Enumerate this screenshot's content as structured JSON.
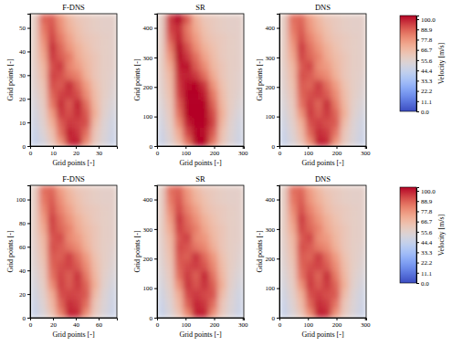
{
  "chart_data": [
    {
      "type": "heatmap",
      "title": "F-DNS",
      "x_label": "Grid points [-]",
      "y_label": "Grid points [-]",
      "xlim": [
        0,
        38
      ],
      "ylim": [
        0,
        56
      ],
      "xticks": [
        0,
        10,
        20,
        30
      ],
      "yticks": [
        0,
        10,
        20,
        30,
        40,
        50
      ],
      "cells": [
        [
          44,
          50,
          60,
          78,
          98,
          100,
          80,
          60,
          52,
          46
        ],
        [
          45,
          53,
          64,
          86,
          100,
          96,
          86,
          62,
          53,
          47
        ],
        [
          47,
          55,
          70,
          90,
          96,
          94,
          92,
          66,
          54,
          48
        ],
        [
          49,
          57,
          76,
          96,
          92,
          98,
          90,
          70,
          56,
          50
        ],
        [
          51,
          59,
          84,
          98,
          90,
          100,
          86,
          68,
          57,
          52
        ],
        [
          53,
          61,
          88,
          94,
          96,
          92,
          80,
          66,
          58,
          54
        ],
        [
          55,
          63,
          92,
          90,
          98,
          88,
          76,
          64,
          58,
          55
        ],
        [
          56,
          66,
          94,
          92,
          86,
          82,
          70,
          62,
          58,
          56
        ],
        [
          57,
          68,
          92,
          96,
          82,
          76,
          68,
          62,
          58,
          57
        ],
        [
          58,
          72,
          96,
          90,
          84,
          72,
          66,
          62,
          58,
          57
        ],
        [
          58,
          76,
          98,
          88,
          78,
          70,
          64,
          60,
          58,
          57
        ],
        [
          58,
          80,
          94,
          84,
          74,
          66,
          62,
          60,
          58,
          57
        ],
        [
          58,
          84,
          92,
          80,
          70,
          64,
          60,
          58,
          57,
          57
        ],
        [
          58,
          88,
          90,
          78,
          68,
          62,
          60,
          58,
          57,
          57
        ]
      ]
    },
    {
      "type": "heatmap",
      "title": "SR",
      "x_label": "Grid points [-]",
      "y_label": "Grid points [-]",
      "xlim": [
        0,
        304
      ],
      "ylim": [
        0,
        448
      ],
      "xticks": [
        0,
        100,
        200,
        300
      ],
      "yticks": [
        0,
        100,
        200,
        300,
        400
      ],
      "cells": [
        [
          46,
          54,
          66,
          86,
          104,
          104,
          84,
          62,
          53,
          47
        ],
        [
          47,
          56,
          72,
          94,
          104,
          102,
          90,
          64,
          54,
          48
        ],
        [
          49,
          58,
          80,
          100,
          104,
          104,
          94,
          68,
          55,
          49
        ],
        [
          51,
          60,
          86,
          104,
          104,
          104,
          92,
          70,
          57,
          51
        ],
        [
          53,
          62,
          90,
          104,
          104,
          104,
          88,
          68,
          58,
          53
        ],
        [
          55,
          64,
          94,
          104,
          104,
          100,
          84,
          66,
          58,
          55
        ],
        [
          56,
          66,
          96,
          102,
          104,
          96,
          78,
          64,
          58,
          56
        ],
        [
          57,
          68,
          98,
          100,
          96,
          86,
          72,
          62,
          58,
          56
        ],
        [
          58,
          72,
          100,
          102,
          90,
          80,
          68,
          62,
          58,
          57
        ],
        [
          58,
          78,
          104,
          96,
          86,
          74,
          66,
          60,
          58,
          57
        ],
        [
          58,
          84,
          104,
          92,
          80,
          70,
          64,
          60,
          58,
          57
        ],
        [
          58,
          90,
          100,
          86,
          76,
          66,
          62,
          60,
          58,
          57
        ],
        [
          58,
          94,
          98,
          84,
          72,
          64,
          60,
          58,
          57,
          57
        ],
        [
          58,
          96,
          104,
          90,
          70,
          62,
          60,
          58,
          57,
          57
        ]
      ]
    },
    {
      "type": "heatmap",
      "title": "DNS",
      "x_label": "Grid points [-]",
      "y_label": "Grid points [-]",
      "xlim": [
        0,
        304
      ],
      "ylim": [
        0,
        448
      ],
      "xticks": [
        0,
        100,
        200,
        300
      ],
      "yticks": [
        0,
        100,
        200,
        300,
        400
      ],
      "cells": [
        [
          45,
          52,
          62,
          80,
          100,
          98,
          78,
          60,
          52,
          46
        ],
        [
          46,
          54,
          66,
          88,
          98,
          95,
          85,
          62,
          53,
          47
        ],
        [
          48,
          56,
          70,
          92,
          95,
          92,
          90,
          66,
          54,
          48
        ],
        [
          50,
          58,
          78,
          96,
          90,
          96,
          88,
          70,
          56,
          50
        ],
        [
          52,
          60,
          85,
          95,
          88,
          98,
          84,
          68,
          57,
          52
        ],
        [
          54,
          62,
          88,
          92,
          94,
          90,
          80,
          66,
          58,
          54
        ],
        [
          55,
          64,
          90,
          88,
          96,
          86,
          76,
          64,
          58,
          55
        ],
        [
          56,
          66,
          92,
          90,
          84,
          80,
          70,
          62,
          58,
          56
        ],
        [
          57,
          68,
          90,
          94,
          80,
          76,
          68,
          62,
          58,
          57
        ],
        [
          58,
          72,
          94,
          88,
          82,
          72,
          66,
          62,
          58,
          57
        ],
        [
          58,
          76,
          96,
          86,
          78,
          70,
          64,
          60,
          58,
          57
        ],
        [
          58,
          80,
          92,
          82,
          74,
          66,
          62,
          60,
          58,
          57
        ],
        [
          58,
          84,
          90,
          78,
          70,
          64,
          60,
          58,
          57,
          57
        ],
        [
          58,
          86,
          88,
          76,
          68,
          62,
          60,
          58,
          57,
          57
        ]
      ],
      "colorbar": {
        "label": "Velocity [m/s]",
        "range": [
          0,
          104
        ],
        "ticks": [
          {
            "value": 0,
            "label": "0.0"
          },
          11.1,
          22.2,
          33.3,
          44.4,
          55.6,
          66.7,
          77.8,
          88.9,
          {
            "value": 100,
            "label": "100.0"
          }
        ]
      }
    },
    {
      "type": "heatmap",
      "title": "F-DNS",
      "x_label": "Grid points [-]",
      "y_label": "Grid points [-]",
      "xlim": [
        0,
        76
      ],
      "ylim": [
        0,
        112
      ],
      "xticks": [
        0,
        20,
        40,
        60
      ],
      "yticks": [
        0,
        20,
        40,
        60,
        80,
        100
      ],
      "cells": [
        [
          45,
          52,
          63,
          82,
          99,
          98,
          79,
          60,
          52,
          46
        ],
        [
          46,
          54,
          67,
          88,
          98,
          95,
          86,
          62,
          53,
          47
        ],
        [
          48,
          56,
          71,
          92,
          94,
          93,
          90,
          66,
          54,
          48
        ],
        [
          50,
          58,
          79,
          95,
          90,
          96,
          88,
          70,
          56,
          50
        ],
        [
          52,
          60,
          85,
          94,
          89,
          97,
          84,
          68,
          57,
          52
        ],
        [
          54,
          62,
          88,
          92,
          94,
          90,
          80,
          66,
          58,
          54
        ],
        [
          55,
          64,
          90,
          89,
          95,
          86,
          76,
          64,
          58,
          55
        ],
        [
          56,
          66,
          92,
          90,
          85,
          80,
          70,
          62,
          58,
          56
        ],
        [
          57,
          68,
          91,
          93,
          81,
          76,
          68,
          62,
          58,
          57
        ],
        [
          58,
          72,
          94,
          88,
          82,
          72,
          66,
          62,
          58,
          57
        ],
        [
          58,
          76,
          95,
          86,
          78,
          70,
          64,
          60,
          58,
          57
        ],
        [
          58,
          80,
          92,
          82,
          74,
          66,
          62,
          60,
          58,
          57
        ],
        [
          58,
          84,
          90,
          79,
          70,
          64,
          60,
          58,
          57,
          57
        ],
        [
          58,
          86,
          88,
          76,
          68,
          62,
          60,
          58,
          57,
          57
        ]
      ]
    },
    {
      "type": "heatmap",
      "title": "SR",
      "x_label": "Grid points [-]",
      "y_label": "Grid points [-]",
      "xlim": [
        0,
        304
      ],
      "ylim": [
        0,
        448
      ],
      "xticks": [
        0,
        100,
        200,
        300
      ],
      "yticks": [
        0,
        100,
        200,
        300,
        400
      ],
      "cells": [
        [
          45,
          52,
          63,
          81,
          100,
          99,
          79,
          60,
          52,
          46
        ],
        [
          46,
          54,
          67,
          89,
          99,
          96,
          86,
          62,
          53,
          47
        ],
        [
          48,
          56,
          71,
          93,
          96,
          93,
          91,
          66,
          54,
          48
        ],
        [
          50,
          58,
          79,
          97,
          91,
          97,
          89,
          70,
          56,
          50
        ],
        [
          52,
          60,
          86,
          96,
          89,
          99,
          85,
          68,
          57,
          52
        ],
        [
          54,
          62,
          89,
          93,
          95,
          91,
          81,
          66,
          58,
          54
        ],
        [
          55,
          64,
          91,
          89,
          97,
          87,
          77,
          64,
          58,
          55
        ],
        [
          56,
          66,
          93,
          91,
          85,
          81,
          71,
          62,
          58,
          56
        ],
        [
          57,
          68,
          91,
          95,
          81,
          77,
          68,
          62,
          58,
          57
        ],
        [
          58,
          72,
          95,
          89,
          83,
          73,
          66,
          62,
          58,
          57
        ],
        [
          58,
          76,
          97,
          87,
          79,
          70,
          64,
          60,
          58,
          57
        ],
        [
          58,
          80,
          93,
          83,
          75,
          66,
          62,
          60,
          58,
          57
        ],
        [
          58,
          84,
          91,
          79,
          70,
          64,
          60,
          58,
          57,
          57
        ],
        [
          58,
          86,
          89,
          77,
          68,
          62,
          60,
          58,
          57,
          57
        ]
      ]
    },
    {
      "type": "heatmap",
      "title": "DNS",
      "x_label": "Grid points [-]",
      "y_label": "Grid points [-]",
      "xlim": [
        0,
        304
      ],
      "ylim": [
        0,
        448
      ],
      "xticks": [
        0,
        100,
        200,
        300
      ],
      "yticks": [
        0,
        100,
        200,
        300,
        400
      ],
      "cells": [
        [
          45,
          52,
          62,
          80,
          100,
          98,
          78,
          60,
          52,
          46
        ],
        [
          46,
          54,
          66,
          88,
          98,
          95,
          85,
          62,
          53,
          47
        ],
        [
          48,
          56,
          70,
          92,
          95,
          92,
          90,
          66,
          54,
          48
        ],
        [
          50,
          58,
          78,
          96,
          90,
          96,
          88,
          70,
          56,
          50
        ],
        [
          52,
          60,
          85,
          95,
          88,
          98,
          84,
          68,
          57,
          52
        ],
        [
          54,
          62,
          88,
          92,
          94,
          90,
          80,
          66,
          58,
          54
        ],
        [
          55,
          64,
          90,
          88,
          96,
          86,
          76,
          64,
          58,
          55
        ],
        [
          56,
          66,
          92,
          90,
          84,
          80,
          70,
          62,
          58,
          56
        ],
        [
          57,
          68,
          90,
          94,
          80,
          76,
          68,
          62,
          58,
          57
        ],
        [
          58,
          72,
          94,
          88,
          82,
          72,
          66,
          62,
          58,
          57
        ],
        [
          58,
          76,
          96,
          86,
          78,
          70,
          64,
          60,
          58,
          57
        ],
        [
          58,
          80,
          92,
          82,
          74,
          66,
          62,
          60,
          58,
          57
        ],
        [
          58,
          84,
          90,
          78,
          70,
          64,
          60,
          58,
          57,
          57
        ],
        [
          58,
          86,
          88,
          76,
          68,
          62,
          60,
          58,
          57,
          57
        ]
      ],
      "colorbar": {
        "label": "Velocity [m/s]",
        "range": [
          0,
          104
        ],
        "ticks": [
          {
            "value": 0,
            "label": "0.0"
          },
          11.1,
          22.2,
          33.3,
          44.4,
          55.6,
          66.7,
          77.8,
          88.9,
          {
            "value": 100,
            "label": "100.0"
          }
        ]
      }
    }
  ]
}
